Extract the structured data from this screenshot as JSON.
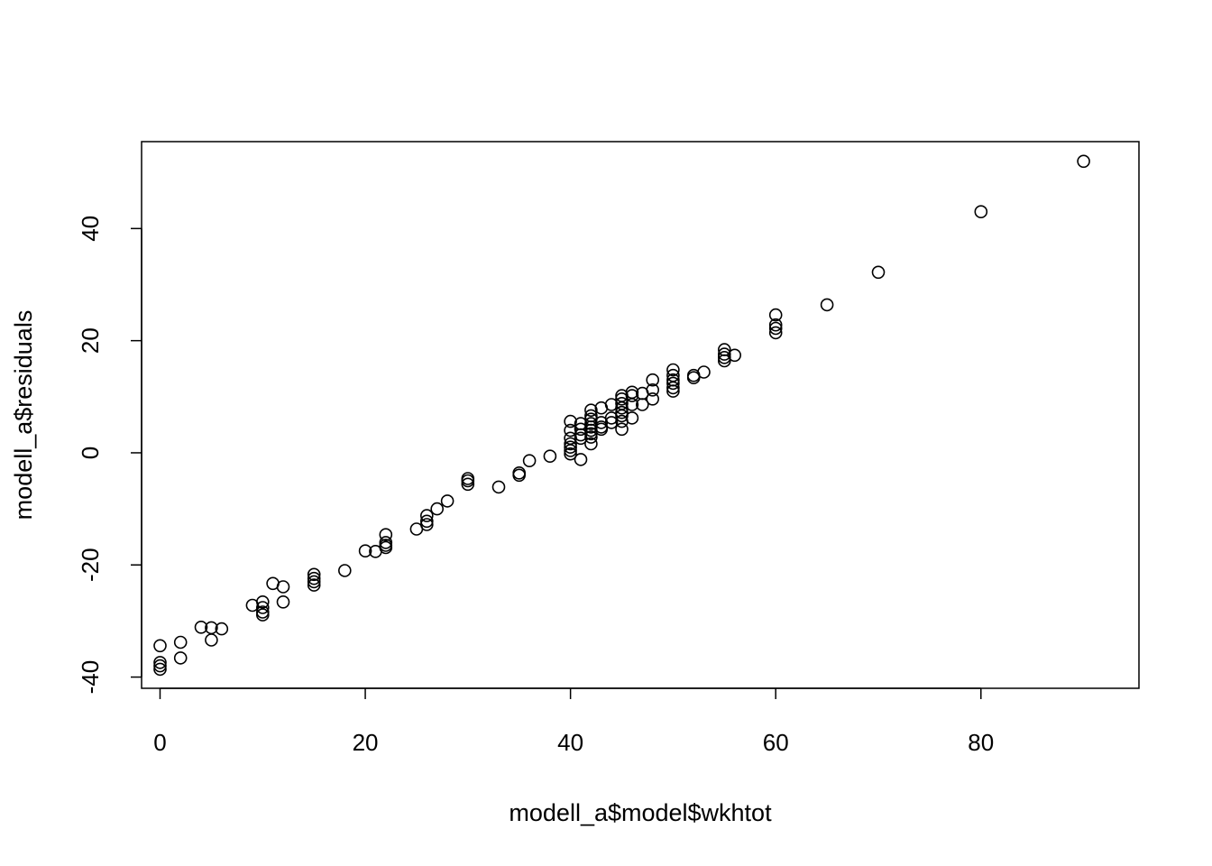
{
  "chart_data": {
    "type": "scatter",
    "title": "",
    "xlabel": "modell_a$model$wkhtot",
    "ylabel": "modell_a$residuals",
    "xlim": [
      -1.8,
      95.4
    ],
    "ylim": [
      -42.0,
      55.5
    ],
    "x_ticks": [
      0,
      20,
      40,
      60,
      80
    ],
    "y_ticks": [
      -40,
      -20,
      0,
      20,
      40
    ],
    "x_tick_labels": [
      "0",
      "20",
      "40",
      "60",
      "80"
    ],
    "y_tick_labels": [
      "-40",
      "-20",
      "0",
      "20",
      "40"
    ],
    "grid": false,
    "legend": "none",
    "marker": "open-circle",
    "point_color": "#000000",
    "points": [
      [
        0,
        -34.4
      ],
      [
        0,
        -37.4
      ],
      [
        0,
        -38.0
      ],
      [
        0,
        -38.6
      ],
      [
        2,
        -33.8
      ],
      [
        2,
        -36.6
      ],
      [
        4,
        -31.1
      ],
      [
        5,
        -31.2
      ],
      [
        5,
        -33.4
      ],
      [
        6,
        -31.4
      ],
      [
        9,
        -27.2
      ],
      [
        10,
        -26.6
      ],
      [
        10,
        -27.6
      ],
      [
        10,
        -28.4
      ],
      [
        10,
        -28.9
      ],
      [
        11,
        -23.3
      ],
      [
        12,
        -23.9
      ],
      [
        12,
        -26.6
      ],
      [
        15,
        -21.7
      ],
      [
        15,
        -22.4
      ],
      [
        15,
        -23.0
      ],
      [
        15,
        -23.6
      ],
      [
        18,
        -21.0
      ],
      [
        20,
        -17.5
      ],
      [
        21,
        -17.6
      ],
      [
        22,
        -14.6
      ],
      [
        22,
        -16.0
      ],
      [
        22,
        -16.5
      ],
      [
        22,
        -16.9
      ],
      [
        25,
        -13.6
      ],
      [
        26,
        -11.2
      ],
      [
        26,
        -12.2
      ],
      [
        26,
        -12.8
      ],
      [
        27,
        -10.0
      ],
      [
        28,
        -8.6
      ],
      [
        30,
        -4.6
      ],
      [
        30,
        -5.0
      ],
      [
        30,
        -5.6
      ],
      [
        33,
        -6.1
      ],
      [
        35,
        -3.6
      ],
      [
        35,
        -4.0
      ],
      [
        36,
        -1.4
      ],
      [
        38,
        -0.6
      ],
      [
        40,
        5.6
      ],
      [
        40,
        4.0
      ],
      [
        40,
        2.6
      ],
      [
        40,
        1.6
      ],
      [
        40,
        1.0
      ],
      [
        40,
        0.4
      ],
      [
        40,
        -0.2
      ],
      [
        41,
        -1.2
      ],
      [
        41,
        2.6
      ],
      [
        41,
        3.2
      ],
      [
        41,
        4.2
      ],
      [
        41,
        5.2
      ],
      [
        42,
        1.6
      ],
      [
        42,
        2.8
      ],
      [
        42,
        3.4
      ],
      [
        42,
        4.0
      ],
      [
        42,
        4.6
      ],
      [
        42,
        5.2
      ],
      [
        42,
        6.0
      ],
      [
        42,
        6.6
      ],
      [
        42,
        7.6
      ],
      [
        43,
        4.2
      ],
      [
        43,
        4.6
      ],
      [
        43,
        5.4
      ],
      [
        43,
        8.0
      ],
      [
        44,
        5.4
      ],
      [
        44,
        6.2
      ],
      [
        44,
        8.6
      ],
      [
        45,
        4.2
      ],
      [
        45,
        5.6
      ],
      [
        45,
        6.6
      ],
      [
        45,
        7.2
      ],
      [
        45,
        8.0
      ],
      [
        45,
        8.8
      ],
      [
        45,
        9.6
      ],
      [
        45,
        10.2
      ],
      [
        46,
        6.2
      ],
      [
        46,
        8.6
      ],
      [
        46,
        10.2
      ],
      [
        46,
        10.8
      ],
      [
        47,
        8.6
      ],
      [
        47,
        10.6
      ],
      [
        48,
        9.6
      ],
      [
        48,
        11.2
      ],
      [
        48,
        13.0
      ],
      [
        50,
        11.0
      ],
      [
        50,
        11.6
      ],
      [
        50,
        12.4
      ],
      [
        50,
        13.0
      ],
      [
        50,
        13.8
      ],
      [
        50,
        14.8
      ],
      [
        52,
        13.4
      ],
      [
        52,
        13.8
      ],
      [
        53,
        14.4
      ],
      [
        55,
        16.4
      ],
      [
        55,
        17.0
      ],
      [
        55,
        17.6
      ],
      [
        55,
        18.4
      ],
      [
        56,
        17.4
      ],
      [
        60,
        21.4
      ],
      [
        60,
        22.2
      ],
      [
        60,
        22.8
      ],
      [
        60,
        24.6
      ],
      [
        65,
        26.4
      ],
      [
        70,
        32.2
      ],
      [
        80,
        43.0
      ],
      [
        90,
        52.0
      ]
    ]
  }
}
